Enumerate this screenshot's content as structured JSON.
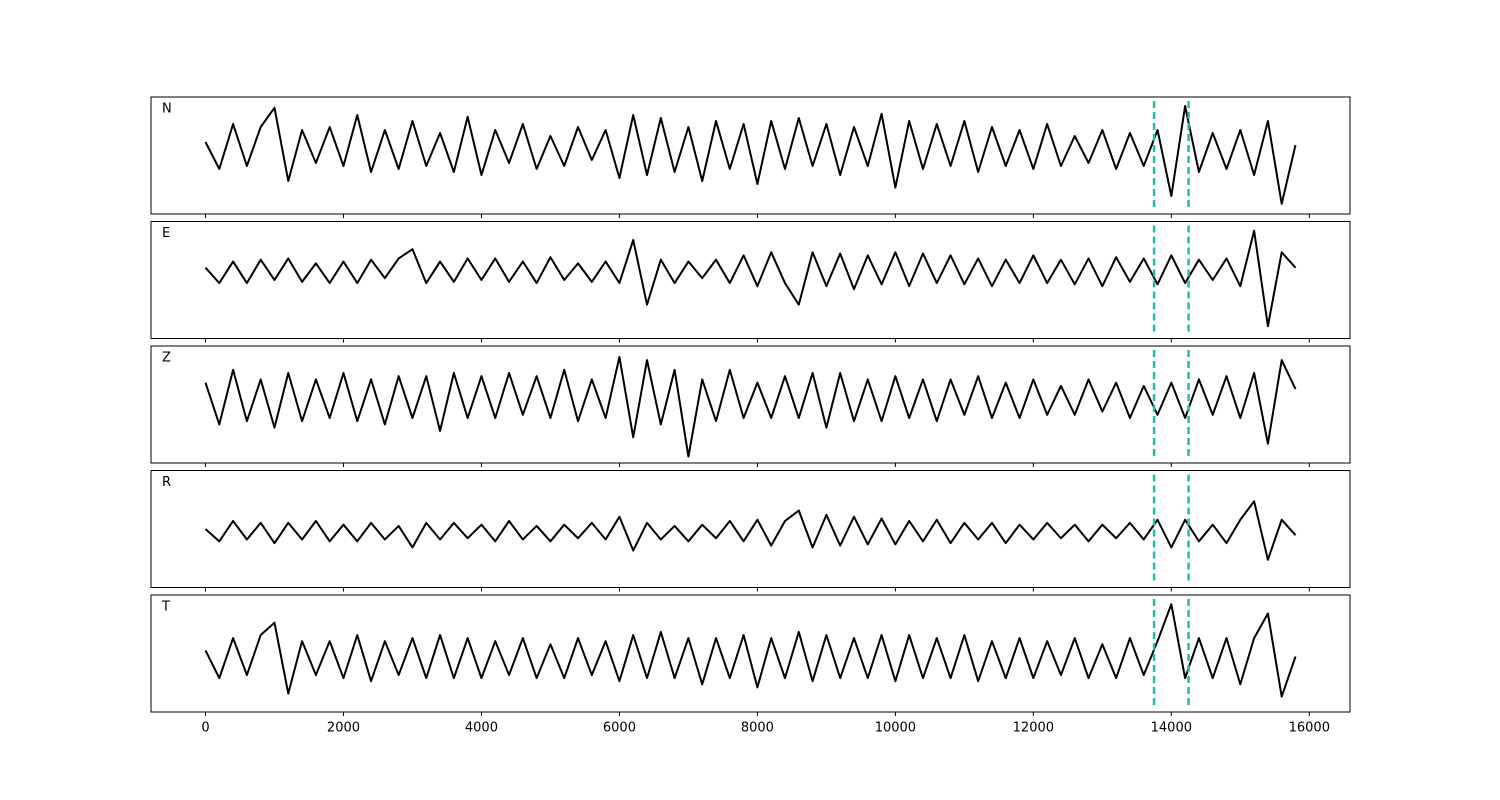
{
  "chart_data": [
    {
      "type": "line",
      "label": "N",
      "color": "#000000",
      "vline_color": "#1fbfb0",
      "vlines": [
        13750,
        14250
      ],
      "xlim": [
        -790,
        16590
      ],
      "ylim": [
        -1.1,
        0.85
      ],
      "xticks": [
        0,
        2000,
        4000,
        6000,
        8000,
        10000,
        12000,
        14000,
        16000
      ],
      "x": [
        0,
        200,
        400,
        600,
        800,
        1000,
        1200,
        1400,
        1600,
        1800,
        2000,
        2200,
        2400,
        2600,
        2800,
        3000,
        3200,
        3400,
        3600,
        3800,
        4000,
        4200,
        4400,
        4600,
        4800,
        5000,
        5200,
        5400,
        5600,
        5800,
        6000,
        6200,
        6400,
        6600,
        6800,
        7000,
        7200,
        7400,
        7600,
        7800,
        8000,
        8200,
        8400,
        8600,
        8800,
        9000,
        9200,
        9400,
        9600,
        9800,
        10000,
        10200,
        10400,
        10600,
        10800,
        11000,
        11200,
        11400,
        11600,
        11800,
        12000,
        12200,
        12400,
        12600,
        12800,
        13000,
        13200,
        13400,
        13600,
        13800,
        14000,
        14200,
        14400,
        14600,
        14800,
        15000,
        15200,
        15400,
        15600,
        15800
      ],
      "values": [
        0.1,
        -0.35,
        0.4,
        -0.3,
        0.35,
        0.67,
        -0.55,
        0.3,
        -0.25,
        0.35,
        -0.3,
        0.55,
        -0.4,
        0.3,
        -0.35,
        0.45,
        -0.3,
        0.25,
        -0.4,
        0.52,
        -0.45,
        0.3,
        -0.25,
        0.4,
        -0.35,
        0.2,
        -0.3,
        0.35,
        -0.2,
        0.3,
        -0.5,
        0.55,
        -0.45,
        0.5,
        -0.4,
        0.35,
        -0.55,
        0.45,
        -0.35,
        0.4,
        -0.6,
        0.45,
        -0.35,
        0.5,
        -0.3,
        0.4,
        -0.45,
        0.35,
        -0.3,
        0.57,
        -0.66,
        0.45,
        -0.35,
        0.4,
        -0.3,
        0.45,
        -0.4,
        0.35,
        -0.3,
        0.3,
        -0.35,
        0.4,
        -0.3,
        0.2,
        -0.25,
        0.3,
        -0.35,
        0.25,
        -0.3,
        0.3,
        -0.8,
        0.7,
        -0.4,
        0.25,
        -0.35,
        0.3,
        -0.45,
        0.45,
        -0.93,
        0.05
      ]
    },
    {
      "type": "line",
      "label": "E",
      "color": "#000000",
      "vline_color": "#1fbfb0",
      "vlines": [
        13750,
        14250
      ],
      "xlim": [
        -790,
        16590
      ],
      "ylim": [
        -1.1,
        0.8
      ],
      "xticks": [
        0,
        2000,
        4000,
        6000,
        8000,
        10000,
        12000,
        14000,
        16000
      ],
      "x": [
        0,
        200,
        400,
        600,
        800,
        1000,
        1200,
        1400,
        1600,
        1800,
        2000,
        2200,
        2400,
        2600,
        2800,
        3000,
        3200,
        3400,
        3600,
        3800,
        4000,
        4200,
        4400,
        4600,
        4800,
        5000,
        5200,
        5400,
        5600,
        5800,
        6000,
        6200,
        6400,
        6600,
        6800,
        7000,
        7200,
        7400,
        7600,
        7800,
        8000,
        8200,
        8400,
        8600,
        8800,
        9000,
        9200,
        9400,
        9600,
        9800,
        10000,
        10200,
        10400,
        10600,
        10800,
        11000,
        11200,
        11400,
        11600,
        11800,
        12000,
        12200,
        12400,
        12600,
        12800,
        13000,
        13200,
        13400,
        13600,
        13800,
        14000,
        14200,
        14400,
        14600,
        14800,
        15000,
        15200,
        15400,
        15600,
        15800
      ],
      "values": [
        0.05,
        -0.2,
        0.15,
        -0.2,
        0.18,
        -0.15,
        0.2,
        -0.18,
        0.12,
        -0.2,
        0.15,
        -0.2,
        0.18,
        -0.12,
        0.2,
        0.35,
        -0.2,
        0.15,
        -0.18,
        0.2,
        -0.15,
        0.2,
        -0.18,
        0.15,
        -0.2,
        0.22,
        -0.15,
        0.12,
        -0.18,
        0.15,
        -0.2,
        0.5,
        -0.55,
        0.18,
        -0.2,
        0.15,
        -0.12,
        0.18,
        -0.2,
        0.25,
        -0.25,
        0.3,
        -0.2,
        -0.55,
        0.3,
        -0.25,
        0.28,
        -0.3,
        0.25,
        -0.22,
        0.3,
        -0.25,
        0.28,
        -0.2,
        0.25,
        -0.22,
        0.2,
        -0.25,
        0.18,
        -0.2,
        0.25,
        -0.2,
        0.18,
        -0.22,
        0.2,
        -0.25,
        0.22,
        -0.18,
        0.2,
        -0.22,
        0.25,
        -0.2,
        0.18,
        -0.15,
        0.2,
        -0.25,
        0.65,
        -0.9,
        0.3,
        0.05
      ]
    },
    {
      "type": "line",
      "label": "Z",
      "color": "#000000",
      "vline_color": "#1fbfb0",
      "vlines": [
        13750,
        14250
      ],
      "xlim": [
        -790,
        16590
      ],
      "ylim": [
        -1.0,
        0.82
      ],
      "xticks": [
        0,
        2000,
        4000,
        6000,
        8000,
        10000,
        12000,
        14000,
        16000
      ],
      "x": [
        0,
        200,
        400,
        600,
        800,
        1000,
        1200,
        1400,
        1600,
        1800,
        2000,
        2200,
        2400,
        2600,
        2800,
        3000,
        3200,
        3400,
        3600,
        3800,
        4000,
        4200,
        4400,
        4600,
        4800,
        5000,
        5200,
        5400,
        5600,
        5800,
        6000,
        6200,
        6400,
        6600,
        6800,
        7000,
        7200,
        7400,
        7600,
        7800,
        8000,
        8200,
        8400,
        8600,
        8800,
        9000,
        9200,
        9400,
        9600,
        9800,
        10000,
        10200,
        10400,
        10600,
        10800,
        11000,
        11200,
        11400,
        11600,
        11800,
        12000,
        12200,
        12400,
        12600,
        12800,
        13000,
        13200,
        13400,
        13600,
        13800,
        14000,
        14200,
        14400,
        14600,
        14800,
        15000,
        15200,
        15400,
        15600,
        15800
      ],
      "values": [
        0.25,
        -0.4,
        0.45,
        -0.35,
        0.3,
        -0.45,
        0.4,
        -0.35,
        0.3,
        -0.3,
        0.4,
        -0.35,
        0.3,
        -0.4,
        0.35,
        -0.3,
        0.35,
        -0.5,
        0.4,
        -0.3,
        0.35,
        -0.3,
        0.4,
        -0.25,
        0.35,
        -0.3,
        0.45,
        -0.35,
        0.3,
        -0.3,
        0.65,
        -0.6,
        0.6,
        -0.4,
        0.45,
        -0.9,
        0.3,
        -0.35,
        0.45,
        -0.3,
        0.25,
        -0.3,
        0.35,
        -0.3,
        0.4,
        -0.45,
        0.4,
        -0.35,
        0.3,
        -0.35,
        0.35,
        -0.3,
        0.3,
        -0.35,
        0.3,
        -0.25,
        0.35,
        -0.3,
        0.25,
        -0.3,
        0.3,
        -0.25,
        0.2,
        -0.25,
        0.3,
        -0.2,
        0.25,
        -0.3,
        0.2,
        -0.25,
        0.25,
        -0.3,
        0.3,
        -0.25,
        0.35,
        -0.3,
        0.4,
        -0.7,
        0.6,
        0.15
      ]
    },
    {
      "type": "line",
      "label": "R",
      "color": "#000000",
      "vline_color": "#1fbfb0",
      "vlines": [
        13750,
        14250
      ],
      "xlim": [
        -790,
        16590
      ],
      "ylim": [
        -0.9,
        1.0
      ],
      "xticks": [
        0,
        2000,
        4000,
        6000,
        8000,
        10000,
        12000,
        14000,
        16000
      ],
      "x": [
        0,
        200,
        400,
        600,
        800,
        1000,
        1200,
        1400,
        1600,
        1800,
        2000,
        2200,
        2400,
        2600,
        2800,
        3000,
        3200,
        3400,
        3600,
        3800,
        4000,
        4200,
        4400,
        4600,
        4800,
        5000,
        5200,
        5400,
        5600,
        5800,
        6000,
        6200,
        6400,
        6600,
        6800,
        7000,
        7200,
        7400,
        7600,
        7800,
        8000,
        8200,
        8400,
        8600,
        8800,
        9000,
        9200,
        9400,
        9600,
        9800,
        10000,
        10200,
        10400,
        10600,
        10800,
        11000,
        11200,
        11400,
        11600,
        11800,
        12000,
        12200,
        12400,
        12600,
        12800,
        13000,
        13200,
        13400,
        13600,
        13800,
        14000,
        14200,
        14400,
        14600,
        14800,
        15000,
        15200,
        15400,
        15600,
        15800
      ],
      "values": [
        0.05,
        -0.15,
        0.18,
        -0.12,
        0.15,
        -0.18,
        0.15,
        -0.12,
        0.18,
        -0.15,
        0.12,
        -0.15,
        0.15,
        -0.12,
        0.1,
        -0.25,
        0.15,
        -0.12,
        0.15,
        -0.1,
        0.12,
        -0.15,
        0.18,
        -0.12,
        0.1,
        -0.15,
        0.12,
        -0.1,
        0.15,
        -0.12,
        0.25,
        -0.3,
        0.15,
        -0.12,
        0.1,
        -0.15,
        0.12,
        -0.1,
        0.18,
        -0.15,
        0.2,
        -0.22,
        0.18,
        0.35,
        -0.25,
        0.28,
        -0.22,
        0.25,
        -0.2,
        0.22,
        -0.2,
        0.18,
        -0.15,
        0.2,
        -0.18,
        0.15,
        -0.12,
        0.15,
        -0.18,
        0.12,
        -0.12,
        0.15,
        -0.1,
        0.12,
        -0.15,
        0.12,
        -0.1,
        0.15,
        -0.12,
        0.2,
        -0.25,
        0.2,
        -0.15,
        0.12,
        -0.18,
        0.2,
        0.5,
        -0.45,
        0.2,
        -0.05
      ]
    },
    {
      "type": "line",
      "label": "T",
      "color": "#000000",
      "vline_color": "#1fbfb0",
      "vlines": [
        13750,
        14250
      ],
      "xlim": [
        -790,
        16590
      ],
      "ylim": [
        -0.85,
        1.05
      ],
      "xticks": [
        0,
        2000,
        4000,
        6000,
        8000,
        10000,
        12000,
        14000,
        16000
      ],
      "x": [
        0,
        200,
        400,
        600,
        800,
        1000,
        1200,
        1400,
        1600,
        1800,
        2000,
        2200,
        2400,
        2600,
        2800,
        3000,
        3200,
        3400,
        3600,
        3800,
        4000,
        4200,
        4400,
        4600,
        4800,
        5000,
        5200,
        5400,
        5600,
        5800,
        6000,
        6200,
        6400,
        6600,
        6800,
        7000,
        7200,
        7400,
        7600,
        7800,
        8000,
        8200,
        8400,
        8600,
        8800,
        9000,
        9200,
        9400,
        9600,
        9800,
        10000,
        10200,
        10400,
        10600,
        10800,
        11000,
        11200,
        11400,
        11600,
        11800,
        12000,
        12200,
        12400,
        12600,
        12800,
        13000,
        13200,
        13400,
        13600,
        13800,
        14000,
        14200,
        14400,
        14600,
        14800,
        15000,
        15200,
        15400,
        15600,
        15800
      ],
      "values": [
        0.15,
        -0.3,
        0.35,
        -0.25,
        0.4,
        0.6,
        -0.55,
        0.3,
        -0.25,
        0.3,
        -0.3,
        0.4,
        -0.35,
        0.3,
        -0.25,
        0.35,
        -0.3,
        0.4,
        -0.3,
        0.35,
        -0.3,
        0.3,
        -0.25,
        0.35,
        -0.3,
        0.25,
        -0.3,
        0.35,
        -0.25,
        0.3,
        -0.35,
        0.4,
        -0.3,
        0.45,
        -0.3,
        0.35,
        -0.4,
        0.35,
        -0.3,
        0.4,
        -0.45,
        0.35,
        -0.3,
        0.45,
        -0.35,
        0.4,
        -0.3,
        0.35,
        -0.3,
        0.4,
        -0.35,
        0.4,
        -0.3,
        0.35,
        -0.3,
        0.4,
        -0.35,
        0.3,
        -0.3,
        0.35,
        -0.3,
        0.3,
        -0.25,
        0.35,
        -0.3,
        0.25,
        -0.3,
        0.35,
        -0.25,
        0.3,
        0.9,
        -0.3,
        0.35,
        -0.3,
        0.35,
        -0.4,
        0.35,
        0.75,
        -0.6,
        0.05
      ]
    }
  ]
}
